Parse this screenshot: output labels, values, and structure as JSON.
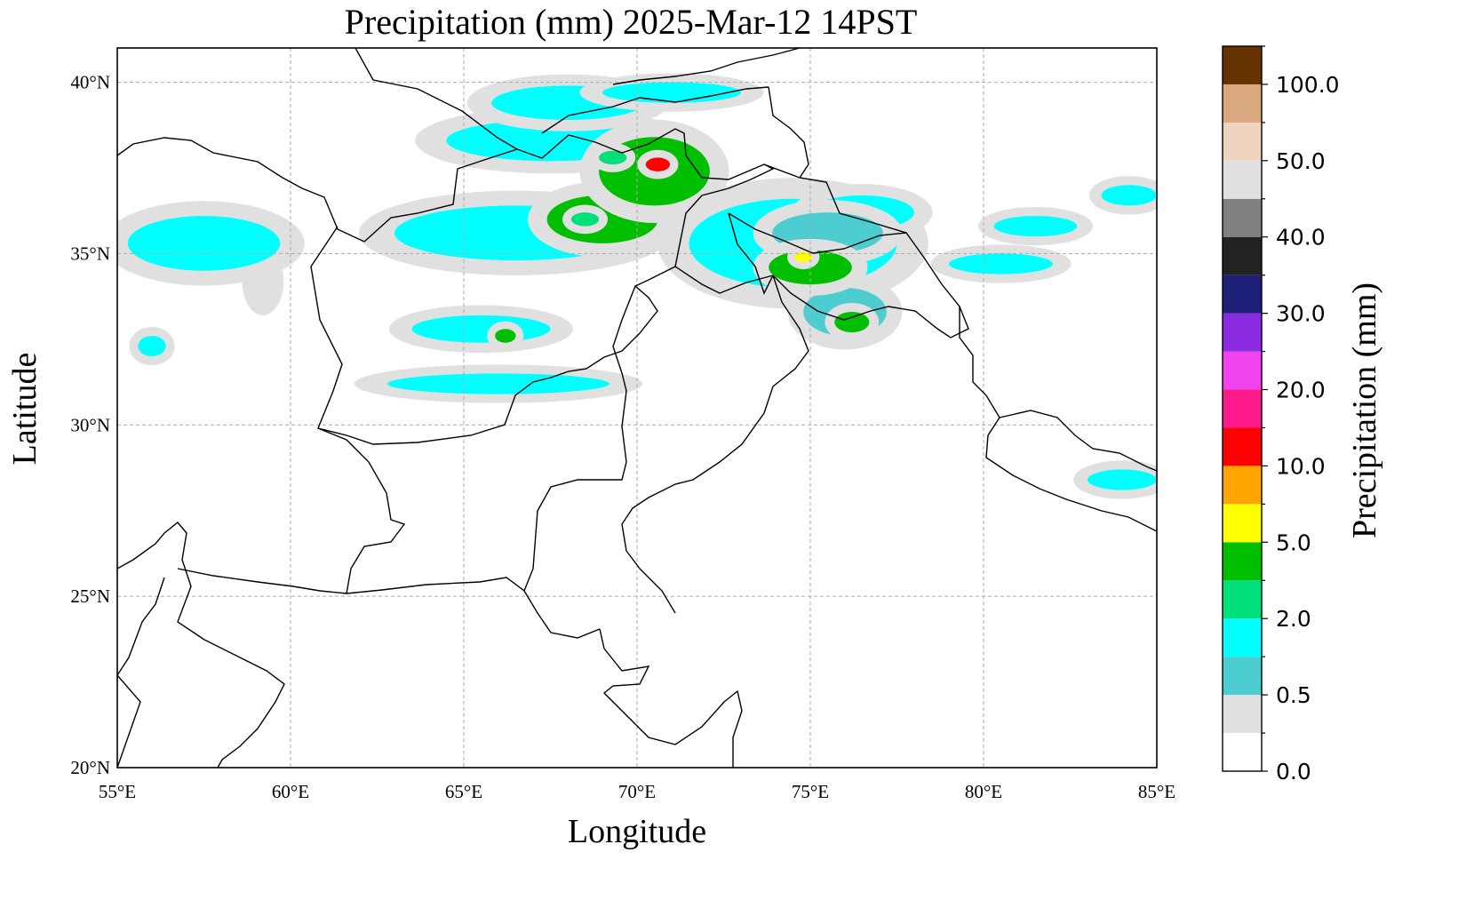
{
  "title": "Precipitation (mm)  2025-Mar-12 14PST",
  "xlabel": "Longitude",
  "ylabel": "Latitude",
  "colorbar_label": "Precipitation (mm)",
  "chart_data": {
    "type": "heatmap",
    "title": "Precipitation (mm)  2025-Mar-12 14PST",
    "xlabel": "Longitude",
    "ylabel": "Latitude",
    "xlim": [
      55,
      85
    ],
    "ylim": [
      20,
      41
    ],
    "grid": true,
    "x_ticks": [
      {
        "value": 55,
        "label": "55°E"
      },
      {
        "value": 60,
        "label": "60°E"
      },
      {
        "value": 65,
        "label": "65°E"
      },
      {
        "value": 70,
        "label": "70°E"
      },
      {
        "value": 75,
        "label": "75°E"
      },
      {
        "value": 80,
        "label": "80°E"
      },
      {
        "value": 85,
        "label": "85°E"
      }
    ],
    "y_ticks": [
      {
        "value": 20,
        "label": "20°N"
      },
      {
        "value": 25,
        "label": "25°N"
      },
      {
        "value": 30,
        "label": "30°N"
      },
      {
        "value": 35,
        "label": "35°N"
      },
      {
        "value": 40,
        "label": "40°N"
      }
    ],
    "colorbar": {
      "label": "Precipitation (mm)",
      "tick_labels": [
        "0.0",
        "0.5",
        "2.0",
        "5.0",
        "10.0",
        "20.0",
        "30.0",
        "40.0",
        "50.0",
        "100.0"
      ],
      "colors": [
        "#ffffff",
        "#e0e0e0",
        "#4ecdd0",
        "#00ffff",
        "#00e07a",
        "#00be00",
        "#ffff00",
        "#ffa500",
        "#ff0000",
        "#ff1a8c",
        "#ee44ee",
        "#8a2be2",
        "#1e2078",
        "#222222",
        "#808080",
        "#e0e0e0",
        "#efd5c0",
        "#daa87e",
        "#663300"
      ]
    },
    "precip_regions": [
      {
        "lon": 57.5,
        "lat": 35.3,
        "rx": 2.2,
        "ry": 0.8,
        "level": 2
      },
      {
        "lon": 59.2,
        "lat": 34.2,
        "rx": 0.6,
        "ry": 1.0,
        "level": 1
      },
      {
        "lon": 56.0,
        "lat": 32.3,
        "rx": 0.4,
        "ry": 0.3,
        "level": 2
      },
      {
        "lon": 66.5,
        "lat": 35.6,
        "rx": 3.5,
        "ry": 0.8,
        "level": 2
      },
      {
        "lon": 69.0,
        "lat": 36.0,
        "rx": 1.6,
        "ry": 0.7,
        "level": 4
      },
      {
        "lon": 68.5,
        "lat": 36.0,
        "rx": 0.4,
        "ry": 0.2,
        "level": 5
      },
      {
        "lon": 70.5,
        "lat": 37.4,
        "rx": 1.6,
        "ry": 1.0,
        "level": 4
      },
      {
        "lon": 70.6,
        "lat": 37.6,
        "rx": 0.35,
        "ry": 0.2,
        "level": 7
      },
      {
        "lon": 69.3,
        "lat": 37.8,
        "rx": 0.4,
        "ry": 0.2,
        "level": 5
      },
      {
        "lon": 67.5,
        "lat": 38.3,
        "rx": 3.0,
        "ry": 0.6,
        "level": 2
      },
      {
        "lon": 68.0,
        "lat": 39.4,
        "rx": 2.2,
        "ry": 0.5,
        "level": 2
      },
      {
        "lon": 71.0,
        "lat": 39.7,
        "rx": 2.0,
        "ry": 0.3,
        "level": 2
      },
      {
        "lon": 65.5,
        "lat": 32.8,
        "rx": 2.0,
        "ry": 0.4,
        "level": 2
      },
      {
        "lon": 66.2,
        "lat": 32.6,
        "rx": 0.3,
        "ry": 0.2,
        "level": 4
      },
      {
        "lon": 66.0,
        "lat": 31.2,
        "rx": 3.2,
        "ry": 0.3,
        "level": 2
      },
      {
        "lon": 74.5,
        "lat": 35.3,
        "rx": 3.0,
        "ry": 1.3,
        "level": 2
      },
      {
        "lon": 75.5,
        "lat": 35.6,
        "rx": 1.6,
        "ry": 0.6,
        "level": 3
      },
      {
        "lon": 75.0,
        "lat": 34.6,
        "rx": 1.2,
        "ry": 0.5,
        "level": 4
      },
      {
        "lon": 74.8,
        "lat": 34.9,
        "rx": 0.25,
        "ry": 0.15,
        "level": 6
      },
      {
        "lon": 76.0,
        "lat": 33.3,
        "rx": 1.2,
        "ry": 0.7,
        "level": 3
      },
      {
        "lon": 76.2,
        "lat": 33.0,
        "rx": 0.5,
        "ry": 0.3,
        "level": 4
      },
      {
        "lon": 76.5,
        "lat": 36.2,
        "rx": 1.5,
        "ry": 0.5,
        "level": 2
      },
      {
        "lon": 81.5,
        "lat": 35.8,
        "rx": 1.2,
        "ry": 0.3,
        "level": 2
      },
      {
        "lon": 84.2,
        "lat": 36.7,
        "rx": 0.8,
        "ry": 0.3,
        "level": 2
      },
      {
        "lon": 80.5,
        "lat": 34.7,
        "rx": 1.5,
        "ry": 0.3,
        "level": 2
      },
      {
        "lon": 84.0,
        "lat": 28.4,
        "rx": 1.0,
        "ry": 0.3,
        "level": 2
      }
    ]
  }
}
